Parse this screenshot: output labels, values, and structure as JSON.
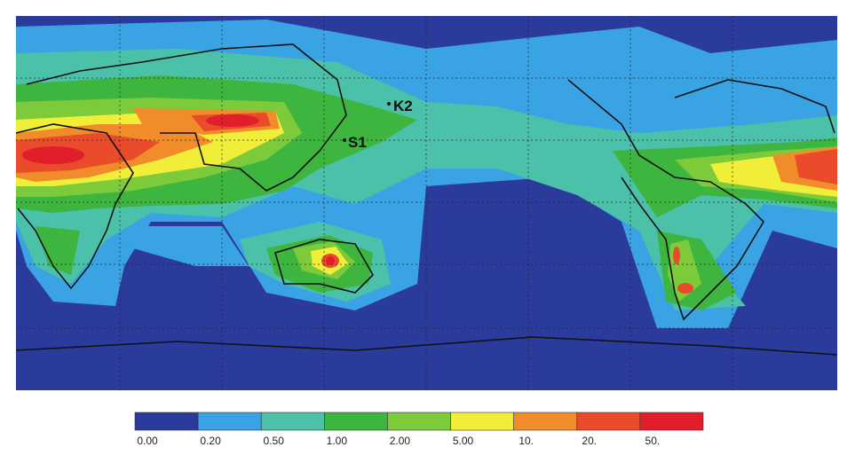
{
  "stations": [
    {
      "label": "K2"
    },
    {
      "label": "S1"
    }
  ],
  "colorbar": {
    "labels": [
      "0.00",
      "0.20",
      "0.50",
      "1.00",
      "2.00",
      "5.00",
      "10.",
      "20.",
      "50."
    ],
    "colors": [
      "#2a3b9b",
      "#3aa3e3",
      "#4cc1a9",
      "#3db53e",
      "#7dcb3a",
      "#f1ee3a",
      "#f08c2a",
      "#e94b2b",
      "#e11e2b"
    ]
  }
}
